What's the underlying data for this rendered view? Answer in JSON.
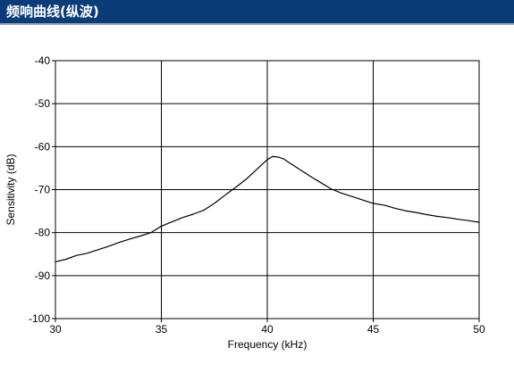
{
  "header": {
    "title": "频响曲线(纵波)",
    "background_color": "#0a3d78"
  },
  "chart_data": {
    "type": "line",
    "title": "",
    "xlabel": "Frequency (kHz)",
    "ylabel": "Sensitivity (dB)",
    "xlim": [
      30,
      50
    ],
    "ylim": [
      -100,
      -40
    ],
    "x_ticks": [
      "30",
      "35",
      "40",
      "45",
      "50"
    ],
    "y_ticks": [
      "-40",
      "-50",
      "-60",
      "-70",
      "-80",
      "-90",
      "-100"
    ],
    "grid": true,
    "x_tick_values": [
      30,
      35,
      40,
      45,
      50
    ],
    "y_tick_values": [
      -40,
      -50,
      -60,
      -70,
      -80,
      -90,
      -100
    ],
    "series": [
      {
        "color": "#000000",
        "x": [
          30.0,
          30.5,
          31.0,
          31.5,
          32.0,
          32.5,
          33.0,
          33.5,
          34.0,
          34.5,
          35.0,
          35.5,
          36.0,
          36.5,
          37.0,
          37.5,
          38.0,
          38.5,
          39.0,
          39.5,
          40.0,
          40.25,
          40.5,
          40.75,
          41.0,
          41.5,
          42.0,
          42.5,
          43.0,
          43.5,
          44.0,
          44.5,
          45.0,
          45.5,
          46.0,
          46.5,
          47.0,
          47.5,
          48.0,
          48.5,
          49.0,
          49.5,
          50.0
        ],
        "y": [
          -86.8,
          -86.2,
          -85.3,
          -84.8,
          -84.0,
          -83.2,
          -82.3,
          -81.5,
          -80.8,
          -80.0,
          -78.5,
          -77.5,
          -76.5,
          -75.7,
          -74.8,
          -73.2,
          -71.3,
          -69.5,
          -67.6,
          -65.3,
          -63.0,
          -62.3,
          -62.4,
          -62.8,
          -63.6,
          -65.2,
          -66.8,
          -68.3,
          -69.8,
          -70.8,
          -71.6,
          -72.4,
          -73.2,
          -73.6,
          -74.3,
          -74.9,
          -75.3,
          -75.8,
          -76.2,
          -76.5,
          -76.9,
          -77.2,
          -77.6
        ]
      }
    ]
  }
}
